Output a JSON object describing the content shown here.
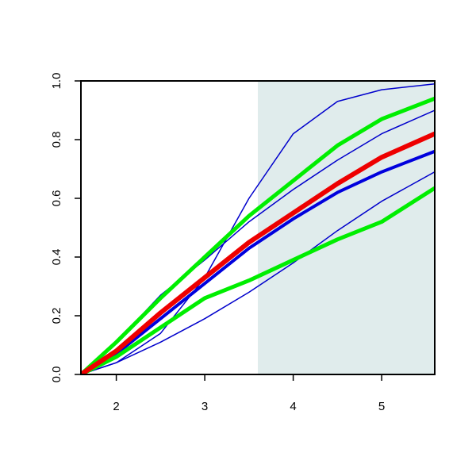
{
  "chart_data": {
    "type": "line",
    "x": [
      1.6,
      2.0,
      2.5,
      3.0,
      3.5,
      4.0,
      4.5,
      5.0,
      5.6
    ],
    "xlim": [
      1.6,
      5.6
    ],
    "xticks": [
      2,
      3,
      4,
      5
    ],
    "ylim": [
      0,
      1
    ],
    "yticks": [
      {
        "value": 0,
        "label": "0.0"
      },
      0.2,
      0.4,
      0.6,
      0.8,
      {
        "value": 1,
        "label": "1.0"
      }
    ],
    "shade": [
      3.6,
      5.6
    ],
    "shade_color": "#e0ecec",
    "series": [
      {
        "color": "#0000cc",
        "line_width": 1.5,
        "values": [
          0,
          0.04,
          0.14,
          0.33,
          0.6,
          0.82,
          0.93,
          0.97,
          0.99
        ]
      },
      {
        "color": "#0000cc",
        "line_width": 1.5,
        "values": [
          0,
          0.11,
          0.27,
          0.39,
          0.52,
          0.63,
          0.73,
          0.82,
          0.9
        ]
      },
      {
        "color": "#0000cc",
        "line_width": 1.5,
        "values": [
          0,
          0.04,
          0.11,
          0.19,
          0.28,
          0.38,
          0.49,
          0.59,
          0.69
        ]
      },
      {
        "color": "#0000dd",
        "line_width": 4,
        "values": [
          0,
          0.07,
          0.19,
          0.31,
          0.43,
          0.53,
          0.62,
          0.69,
          0.76
        ]
      },
      {
        "color": "#00ee00",
        "line_width": 5,
        "values": [
          0,
          0.11,
          0.26,
          0.4,
          0.54,
          0.66,
          0.78,
          0.87,
          0.94
        ]
      },
      {
        "color": "#00ee00",
        "line_width": 5,
        "values": [
          0,
          0.06,
          0.16,
          0.26,
          0.32,
          0.39,
          0.46,
          0.52,
          0.635
        ]
      },
      {
        "color": "#ee0000",
        "line_width": 6,
        "values": [
          0,
          0.08,
          0.21,
          0.33,
          0.45,
          0.55,
          0.65,
          0.74,
          0.82
        ]
      }
    ]
  }
}
